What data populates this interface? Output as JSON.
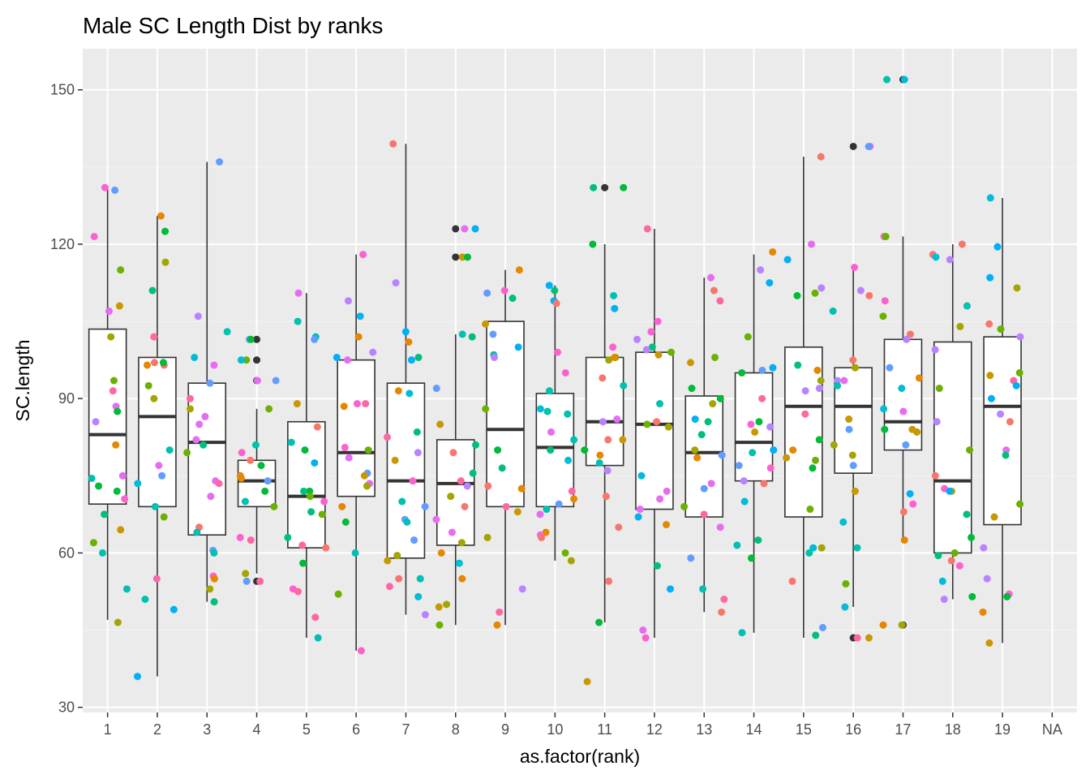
{
  "chart_data": {
    "type": "box",
    "title": "Male SC Length Dist by ranks",
    "xlabel": "as.factor(rank)",
    "ylabel": "SC.length",
    "ylim": [
      29,
      158
    ],
    "yticks": [
      30,
      60,
      90,
      120,
      150
    ],
    "categories": [
      "1",
      "2",
      "3",
      "4",
      "5",
      "6",
      "7",
      "8",
      "9",
      "10",
      "11",
      "12",
      "13",
      "14",
      "15",
      "16",
      "17",
      "18",
      "19",
      "NA"
    ],
    "grid": true,
    "jitter_palette": [
      "#F8766D",
      "#E58700",
      "#C99800",
      "#A3A500",
      "#6BB100",
      "#00BA38",
      "#00BF7D",
      "#00C0AF",
      "#00BCD8",
      "#00B0F6",
      "#619CFF",
      "#B983FF",
      "#E76BF3",
      "#FD61D1",
      "#FF67A4"
    ],
    "boxes": [
      {
        "category": "1",
        "lower": 47,
        "q1": 69.5,
        "median": 83,
        "q3": 103.5,
        "upper": 131,
        "outliers": []
      },
      {
        "category": "2",
        "lower": 36,
        "q1": 69,
        "median": 86.5,
        "q3": 98,
        "upper": 125.5,
        "outliers": []
      },
      {
        "category": "3",
        "lower": 50.5,
        "q1": 63.5,
        "median": 81.5,
        "q3": 93,
        "upper": 136,
        "outliers": []
      },
      {
        "category": "4",
        "lower": 56,
        "q1": 69,
        "median": 74,
        "q3": 78,
        "upper": 88,
        "outliers": [
          54.5,
          93.5,
          97.5,
          101.5
        ]
      },
      {
        "category": "5",
        "lower": 43.5,
        "q1": 61,
        "median": 71,
        "q3": 85.5,
        "upper": 110.5,
        "outliers": []
      },
      {
        "category": "6",
        "lower": 41,
        "q1": 71,
        "median": 79.5,
        "q3": 97.5,
        "upper": 118,
        "outliers": []
      },
      {
        "category": "7",
        "lower": 48,
        "q1": 59,
        "median": 74,
        "q3": 93,
        "upper": 139.5,
        "outliers": []
      },
      {
        "category": "8",
        "lower": 46,
        "q1": 61.5,
        "median": 73.5,
        "q3": 82,
        "upper": 102.5,
        "outliers": [
          117.5,
          123
        ]
      },
      {
        "category": "9",
        "lower": 46,
        "q1": 69,
        "median": 84,
        "q3": 105,
        "upper": 115,
        "outliers": []
      },
      {
        "category": "10",
        "lower": 58.5,
        "q1": 69,
        "median": 80.5,
        "q3": 91,
        "upper": 112,
        "outliers": []
      },
      {
        "category": "11",
        "lower": 46.5,
        "q1": 77,
        "median": 85.5,
        "q3": 98,
        "upper": 120,
        "outliers": [
          131
        ]
      },
      {
        "category": "12",
        "lower": 43.5,
        "q1": 68.5,
        "median": 85,
        "q3": 99,
        "upper": 123,
        "outliers": []
      },
      {
        "category": "13",
        "lower": 48.5,
        "q1": 67,
        "median": 79.5,
        "q3": 90.5,
        "upper": 113.5,
        "outliers": []
      },
      {
        "category": "14",
        "lower": 44.5,
        "q1": 74,
        "median": 81.5,
        "q3": 95,
        "upper": 118,
        "outliers": []
      },
      {
        "category": "15",
        "lower": 43.5,
        "q1": 67,
        "median": 88.5,
        "q3": 100,
        "upper": 137,
        "outliers": []
      },
      {
        "category": "16",
        "lower": 49.5,
        "q1": 75.5,
        "median": 88.5,
        "q3": 96,
        "upper": 115.5,
        "outliers": [
          43.5,
          139
        ]
      },
      {
        "category": "17",
        "lower": 62.5,
        "q1": 80,
        "median": 85.5,
        "q3": 101.5,
        "upper": 121.5,
        "outliers": [
          46,
          152
        ]
      },
      {
        "category": "18",
        "lower": 51,
        "q1": 60,
        "median": 74,
        "q3": 101,
        "upper": 120,
        "outliers": []
      },
      {
        "category": "19",
        "lower": 42.5,
        "q1": 65.5,
        "median": 88.5,
        "q3": 102,
        "upper": 129,
        "outliers": []
      }
    ],
    "points": [
      {
        "category": "1",
        "values": [
          93.5,
          91.5,
          130.5,
          121.5,
          88.5,
          87.5,
          108,
          102,
          85.5,
          75,
          74.5,
          72,
          73,
          70.5,
          67.5,
          64.5,
          62,
          60,
          53,
          46.5,
          131,
          115,
          107,
          81
        ]
      },
      {
        "category": "2",
        "values": [
          125.5,
          122.5,
          116.5,
          111,
          102,
          97,
          96.5,
          96.5,
          92.5,
          90,
          80,
          77,
          75,
          73.5,
          69,
          67,
          55,
          51,
          49,
          36,
          97
        ]
      },
      {
        "category": "3",
        "values": [
          136,
          106,
          103,
          98,
          96.5,
          93,
          90,
          88,
          86.5,
          85,
          82,
          81,
          79.5,
          74,
          73.5,
          71,
          65,
          64,
          60.5,
          60,
          55.5,
          55,
          53,
          50.5
        ]
      },
      {
        "category": "4",
        "values": [
          101.5,
          101.5,
          97.5,
          97.5,
          93.5,
          93.5,
          88,
          81,
          79.5,
          78,
          77,
          75,
          74.5,
          74,
          72,
          70,
          69,
          63,
          62.5,
          56,
          54.5,
          54.5
        ]
      },
      {
        "category": "5",
        "values": [
          110.5,
          105,
          102,
          101.5,
          89,
          84.5,
          81.5,
          80,
          77.5,
          72,
          72,
          71,
          70,
          68,
          67.5,
          63,
          61.5,
          61,
          58,
          53,
          52.5,
          47.5,
          43.5
        ]
      },
      {
        "category": "6",
        "values": [
          118,
          109,
          106,
          102,
          99,
          98,
          97.5,
          89,
          89,
          88.5,
          80.5,
          80,
          78.5,
          75.5,
          75,
          73.5,
          73,
          69,
          66,
          60,
          52,
          41
        ]
      },
      {
        "category": "7",
        "values": [
          139.5,
          112.5,
          103,
          101,
          98,
          97.5,
          91.5,
          91,
          83.5,
          82.5,
          79.5,
          78,
          74,
          70,
          69,
          66.5,
          66,
          62.5,
          59.5,
          58.5,
          55,
          55,
          53.5,
          51.5,
          48
        ]
      },
      {
        "category": "8",
        "values": [
          123,
          123,
          117.5,
          117.5,
          102.5,
          102,
          92,
          85,
          81,
          79.5,
          75.5,
          74,
          73,
          71,
          69,
          66.5,
          64,
          62,
          60,
          58,
          55,
          50,
          49.5,
          46
        ]
      },
      {
        "category": "9",
        "values": [
          115,
          111,
          110.5,
          109.5,
          104.5,
          102.5,
          100,
          98.5,
          98,
          88,
          80,
          76.5,
          73,
          72.5,
          69,
          68,
          63,
          53,
          48.5,
          46
        ]
      },
      {
        "category": "10",
        "values": [
          112,
          111,
          109,
          108.5,
          99,
          95,
          91.5,
          88,
          87.5,
          87,
          83.5,
          82,
          80,
          78,
          72,
          70.5,
          69.5,
          68.5,
          67.5,
          64,
          63.5,
          63,
          60,
          58.5
        ]
      },
      {
        "category": "11",
        "values": [
          131,
          131,
          120,
          110,
          107.5,
          100,
          98,
          98,
          97.5,
          94,
          92.5,
          86,
          85.5,
          82,
          82,
          80,
          79,
          77.5,
          76,
          71,
          65,
          54.5,
          46.5,
          35
        ]
      },
      {
        "category": "12",
        "values": [
          123,
          105,
          103,
          101.5,
          100,
          99.5,
          99,
          98.5,
          89,
          85.5,
          85,
          84.5,
          75,
          72,
          70.5,
          68.5,
          67,
          65.5,
          57.5,
          53,
          45,
          43.5
        ]
      },
      {
        "category": "13",
        "values": [
          113.5,
          111,
          109,
          98,
          97,
          92,
          90,
          89,
          86,
          85.5,
          83,
          80,
          79,
          78.5,
          73.5,
          72.5,
          69,
          67.5,
          65,
          59,
          53,
          51,
          48.5
        ]
      },
      {
        "category": "14",
        "values": [
          118.5,
          115,
          112.5,
          102,
          96,
          95.5,
          95,
          90,
          85.5,
          85,
          84.5,
          83.5,
          80,
          79.5,
          77,
          76.5,
          74,
          73.5,
          70,
          62.5,
          61.5,
          59,
          44.5
        ]
      },
      {
        "category": "15",
        "values": [
          137,
          120,
          117,
          111.5,
          110.5,
          110,
          96.5,
          95.5,
          93.5,
          92,
          91.5,
          87,
          82,
          80,
          78.5,
          78,
          76.5,
          68.5,
          61,
          61,
          60,
          54.5,
          45.5,
          44
        ]
      },
      {
        "category": "16",
        "values": [
          139,
          139,
          115.5,
          111,
          110,
          107,
          97.5,
          96,
          93.5,
          93.5,
          92.5,
          86,
          84,
          81,
          79,
          77,
          72,
          66,
          61,
          54,
          49.5,
          43.5,
          43.5
        ]
      },
      {
        "category": "17",
        "values": [
          152,
          152,
          121.5,
          121.5,
          109,
          106,
          102.5,
          101.5,
          96,
          94,
          92,
          88,
          87.5,
          84,
          84,
          83.5,
          81,
          71.5,
          69.5,
          68,
          62.5,
          46,
          46
        ]
      },
      {
        "category": "18",
        "values": [
          120,
          118,
          117.5,
          117,
          108,
          104,
          99.5,
          92,
          85.5,
          80,
          75,
          72.5,
          72,
          72,
          67.5,
          63,
          60,
          59.5,
          58.5,
          57.5,
          54.5,
          51.5,
          51
        ]
      },
      {
        "category": "19",
        "values": [
          129,
          119.5,
          113.5,
          111.5,
          104.5,
          103.5,
          102,
          95,
          94.5,
          93.5,
          92.5,
          90,
          87,
          85.5,
          80,
          79,
          69.5,
          67,
          61,
          55,
          52,
          51.5,
          48.5,
          42.5
        ]
      }
    ]
  }
}
